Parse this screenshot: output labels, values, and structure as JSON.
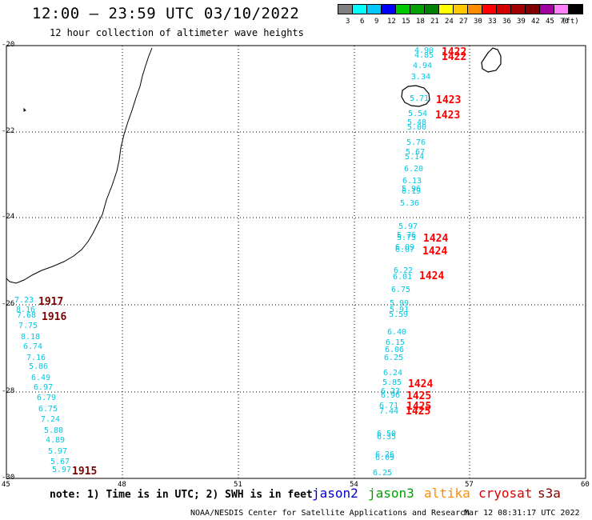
{
  "header": {
    "title": "12:00 – 23:59 UTC 03/10/2022",
    "subtitle": "12 hour collection of altimeter wave heights"
  },
  "legend": {
    "labels": [
      "3",
      "6",
      "9",
      "12",
      "15",
      "18",
      "21",
      "24",
      "27",
      "30",
      "33",
      "36",
      "39",
      "42",
      "45",
      "70",
      "(ft)"
    ],
    "colors": [
      "#808080",
      "#00ffff",
      "#00c8ff",
      "#0000ff",
      "#00c800",
      "#00a000",
      "#008000",
      "#ffff00",
      "#ffc800",
      "#ff8c00",
      "#ff0000",
      "#d40000",
      "#a00000",
      "#800000",
      "#a000a0",
      "#ff80ff",
      "#000000"
    ]
  },
  "axes": {
    "y_labels": [
      "-20",
      "-22",
      "-24",
      "-26",
      "-28",
      "-30"
    ],
    "x_labels": [
      "45",
      "48",
      "51",
      "54",
      "57",
      "60"
    ]
  },
  "readings_cyan": [
    "4.90",
    "4.85",
    "4.94",
    "3.34",
    "5.71",
    "5.54",
    "5.48",
    "5.00",
    "5.76",
    "5.67",
    "5.14",
    "6.20",
    "6.13",
    "5.96",
    "6.19",
    "5.36",
    "5.97",
    "5.76",
    "5.75",
    "6.09",
    "6.07",
    "6.22",
    "6.01",
    "6.75",
    "5.99",
    "5.91",
    "5.59",
    "6.40",
    "6.15",
    "6.06",
    "6.25",
    "6.24",
    "5.85",
    "6.23",
    "6.96",
    "6.71",
    "7.44",
    "6.50",
    "6.35",
    "6.26",
    "6.09",
    "6.25",
    "7.23",
    "8.16",
    "7.68",
    "7.75",
    "8.18",
    "6.74",
    "7.16",
    "5.86",
    "6.49",
    "6.97",
    "6.79",
    "6.75",
    "7.24",
    "5.80",
    "4.89",
    "5.97",
    "5.67",
    "5.97"
  ],
  "time_labels": [
    "1422",
    "1422",
    "1423",
    "1423",
    "1424",
    "1424",
    "1424",
    "1424",
    "1425",
    "1425",
    "1425",
    "1917",
    "1916",
    "1915"
  ],
  "satellites": [
    {
      "name": "jason2",
      "color": "#0000cc"
    },
    {
      "name": "jason3",
      "color": "#00a000"
    },
    {
      "name": "altika",
      "color": "#ff8c00"
    },
    {
      "name": "cryosat",
      "color": "#dd0000"
    },
    {
      "name": "s3a",
      "color": "#800000"
    }
  ],
  "footer": {
    "note": "note: 1) Time is in UTC; 2) SWH is in feet",
    "credit": "NOAA/NESDIS Center for Satellite Applications and Research",
    "timestamp": "Mar 12 08:31:17 UTC 2022"
  }
}
